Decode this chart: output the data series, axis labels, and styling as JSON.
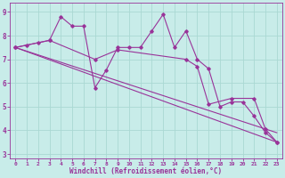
{
  "xlabel": "Windchill (Refroidissement éolien,°C)",
  "bg_color": "#c8ece9",
  "grid_color": "#aad8d3",
  "line_color": "#993399",
  "xlim": [
    -0.5,
    23.5
  ],
  "ylim": [
    2.8,
    9.4
  ],
  "yticks": [
    3,
    4,
    5,
    6,
    7,
    8,
    9
  ],
  "xticks": [
    0,
    1,
    2,
    3,
    4,
    5,
    6,
    7,
    8,
    9,
    10,
    11,
    12,
    13,
    14,
    15,
    16,
    17,
    18,
    19,
    20,
    21,
    22,
    23
  ],
  "series1_x": [
    0,
    1,
    2,
    3,
    4,
    5,
    6,
    7,
    8,
    9,
    10,
    11,
    12,
    13,
    14,
    15,
    16,
    17,
    18,
    19,
    20,
    21,
    22,
    23
  ],
  "series1_y": [
    7.5,
    7.6,
    7.7,
    7.8,
    8.8,
    8.4,
    8.4,
    5.8,
    6.55,
    7.5,
    7.5,
    7.5,
    8.2,
    8.9,
    7.5,
    8.2,
    7.0,
    6.6,
    5.0,
    5.2,
    5.2,
    4.6,
    3.9,
    3.5
  ],
  "series2_x": [
    0,
    3,
    7,
    9,
    15,
    16,
    17,
    19,
    21,
    22,
    23
  ],
  "series2_y": [
    7.5,
    7.8,
    7.0,
    7.4,
    7.0,
    6.7,
    5.1,
    5.35,
    5.35,
    4.05,
    3.5
  ],
  "series3_x": [
    0,
    23
  ],
  "series3_y": [
    7.5,
    3.5
  ],
  "series4_x": [
    0,
    23
  ],
  "series4_y": [
    7.5,
    3.9
  ]
}
